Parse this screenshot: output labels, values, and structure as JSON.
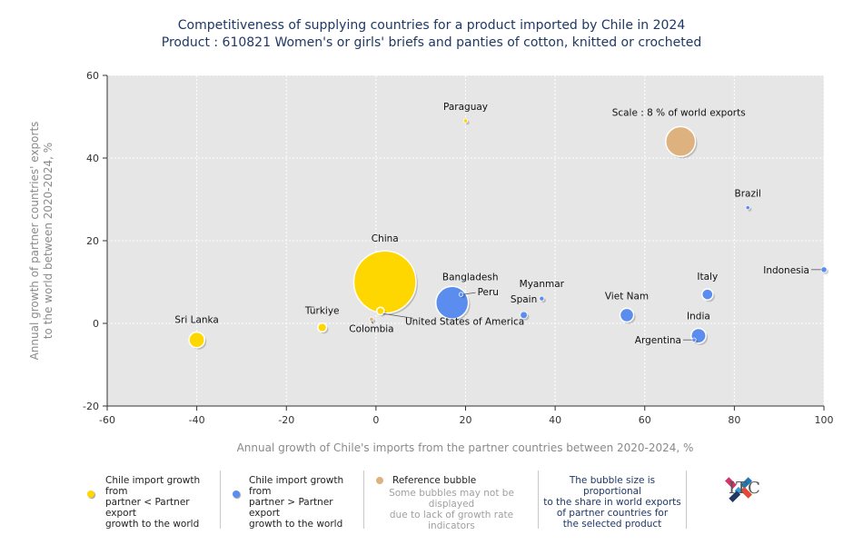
{
  "chart_data": {
    "type": "scatter",
    "title": "Competitiveness of supplying countries for a product imported by Chile in 2024",
    "subtitle": "Product : 610821 Women's or girls' briefs and panties of cotton, knitted or crocheted",
    "xlabel": "Annual growth of Chile's imports from the partner countries between 2020-2024, %",
    "ylabel_lines": [
      "Annual growth of partner countries' exports",
      "to the world between 2020-2024, %"
    ],
    "xlim": [
      -60,
      100
    ],
    "ylim": [
      -20,
      60
    ],
    "x_ticks": [
      -60,
      -40,
      -20,
      0,
      20,
      40,
      60,
      80,
      100
    ],
    "y_ticks": [
      -20,
      0,
      20,
      40,
      60
    ],
    "colors": {
      "yellow": "#FFD700",
      "blue": "#5B8DEF",
      "reference": "#DDB27E",
      "plot_bg": "#E6E6E6"
    },
    "points": [
      {
        "name": "China",
        "x": 2,
        "y": 10,
        "size": 34.9,
        "group": "yellow"
      },
      {
        "name": "Bangladesh",
        "x": 17,
        "y": 5,
        "size": 9.6,
        "group": "blue"
      },
      {
        "name": "Sri Lanka",
        "x": -40,
        "y": -4,
        "size": 2.2,
        "group": "yellow"
      },
      {
        "name": "Türkiye",
        "x": -12,
        "y": -1,
        "size": 0.7,
        "group": "yellow"
      },
      {
        "name": "Colombia",
        "x": -1,
        "y": 1,
        "size": 0.15,
        "group": "reference"
      },
      {
        "name": "United States of America",
        "x": 1,
        "y": 3,
        "size": 0.5,
        "group": "yellow"
      },
      {
        "name": "Peru",
        "x": 19,
        "y": 7,
        "size": 0.15,
        "group": "blue"
      },
      {
        "name": "Paraguay",
        "x": 20,
        "y": 49,
        "size": 0.06,
        "group": "yellow"
      },
      {
        "name": "Spain",
        "x": 33,
        "y": 2,
        "size": 0.45,
        "group": "blue"
      },
      {
        "name": "Myanmar",
        "x": 37,
        "y": 6,
        "size": 0.2,
        "group": "blue"
      },
      {
        "name": "Viet Nam",
        "x": 56,
        "y": 2,
        "size": 1.7,
        "group": "blue"
      },
      {
        "name": "Italy",
        "x": 74,
        "y": 7,
        "size": 1.1,
        "group": "blue"
      },
      {
        "name": "India",
        "x": 72,
        "y": -3,
        "size": 2.0,
        "group": "blue"
      },
      {
        "name": "Argentina",
        "x": 71,
        "y": -4,
        "size": 0.06,
        "group": "blue"
      },
      {
        "name": "Brazil",
        "x": 83,
        "y": 28,
        "size": 0.06,
        "group": "blue"
      },
      {
        "name": "Indonesia",
        "x": 100,
        "y": 13,
        "size": 0.3,
        "group": "blue"
      }
    ],
    "reference_bubble": {
      "label": "Scale : 8 % of world exports",
      "x": 68,
      "y": 44,
      "size": 8
    }
  },
  "legend": {
    "item1": [
      "Chile import growth from",
      "partner < Partner export",
      "growth to the world"
    ],
    "item2": [
      "Chile import growth from",
      "partner > Partner export",
      "growth to the world"
    ],
    "item3_title": "Reference bubble",
    "item3_note": [
      "Some bubbles may not be displayed",
      "due to lack of growth rate",
      "indicators"
    ],
    "item4": [
      "The bubble size is proportional",
      "to the share in world exports",
      "of partner countries for",
      "the selected product"
    ],
    "logo_text": "ITC"
  }
}
